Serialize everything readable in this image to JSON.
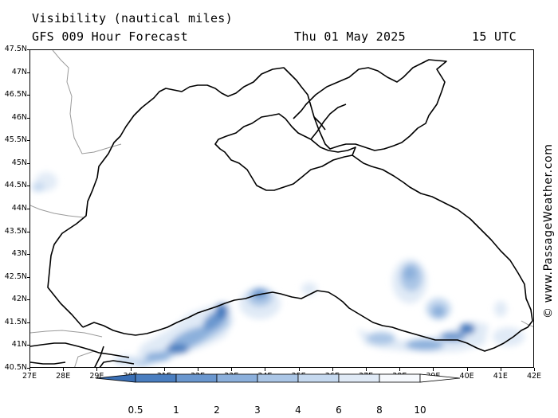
{
  "header": {
    "product": "Visibility (nautical miles)",
    "forecast": "GFS 009 Hour Forecast",
    "date": "Thu 01 May 2025",
    "time": "15 UTC"
  },
  "copyright": "© www.PassageWeather.com",
  "map": {
    "region": "Black Sea",
    "land_color": "#ffffff",
    "sea_color": "#ffffff",
    "coast_color": "#000000",
    "border_color": "#9a9a9a",
    "lat_labels": [
      "47.5N",
      "47N",
      "46.5N",
      "46N",
      "45.5N",
      "45N",
      "44.5N",
      "44N",
      "43.5N",
      "43N",
      "42.5N",
      "42N",
      "41.5N",
      "41N",
      "40.5N"
    ],
    "lon_labels": [
      "27E",
      "28E",
      "29E",
      "30E",
      "31E",
      "32E",
      "33E",
      "34E",
      "35E",
      "36E",
      "37E",
      "38E",
      "39E",
      "40E",
      "41E",
      "42E"
    ],
    "low_visibility_areas": [
      {
        "area": "Bulgarian coast near 44.6N 27E",
        "level": "6-10"
      },
      {
        "area": "Turkish coast 30E-33E",
        "level": "0.5-4"
      },
      {
        "area": "Sinop area 33.5E-34E",
        "level": "1-6"
      },
      {
        "area": "Eastern basin 38E 42N",
        "level": "3-8"
      },
      {
        "area": "Turkish coast 37E-40E",
        "level": "1-6"
      },
      {
        "area": "Georgian coast 40.5E-41E",
        "level": "6-10"
      }
    ]
  },
  "legend": {
    "labels": [
      "0.5",
      "1",
      "2",
      "3",
      "4",
      "6",
      "8",
      "10"
    ],
    "colors": [
      "#3a6fb5",
      "#4a7ec0",
      "#6a97cf",
      "#8cb0dc",
      "#abc6e6",
      "#c6d9ef",
      "#e0eaf6",
      "#f6f9fd",
      "#ffffff"
    ]
  }
}
